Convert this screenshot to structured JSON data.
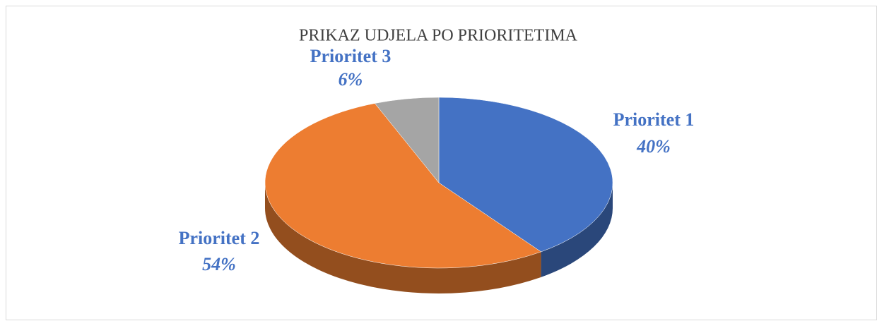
{
  "chart_data": {
    "type": "pie",
    "title": "PRIKAZ UDJELA PO PRIORITETIMA",
    "categories": [
      "Prioritet 1",
      "Prioritet 2",
      "Prioritet 3"
    ],
    "values": [
      40,
      54,
      6
    ],
    "value_labels": [
      "40%",
      "54%",
      "6%"
    ],
    "colors": [
      "#4472c4",
      "#ed7d31",
      "#a5a5a5"
    ]
  }
}
